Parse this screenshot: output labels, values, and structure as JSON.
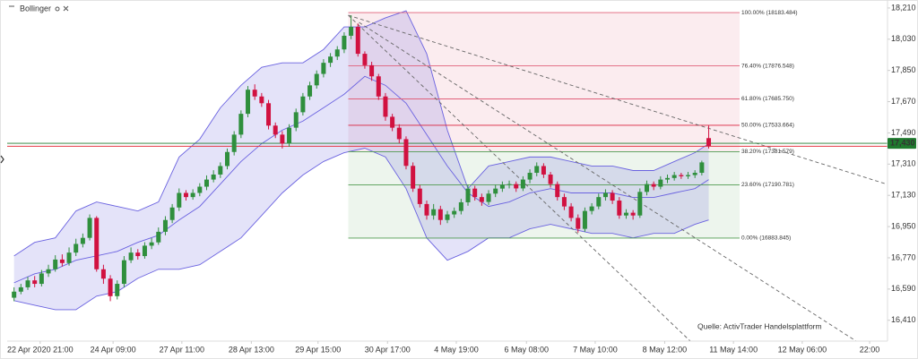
{
  "chart_data": {
    "type": "candlestick",
    "legend": "Bollinger",
    "source": "Quelle: ActivTrader Handelsplattform",
    "up_color": "#2f8f3d",
    "down_color": "#d11140",
    "open": [
      16540,
      16575,
      16600,
      16640,
      16620,
      16680,
      16704,
      16760,
      16740,
      16800,
      16850,
      16885,
      17000,
      16704,
      16650,
      16549,
      16620,
      16756,
      16800,
      16780,
      16840,
      16859,
      16920,
      16988,
      17060,
      17144,
      17120,
      17144,
      17180,
      17221,
      17250,
      17299,
      17380,
      17480,
      17600,
      17739,
      17700,
      17661,
      17532,
      17480,
      17428,
      17520,
      17609,
      17700,
      17764,
      17830,
      17894,
      17930,
      17971,
      18050,
      18101,
      17946,
      17880,
      17816,
      17700,
      17583,
      17520,
      17454,
      17300,
      17169,
      17080,
      17014,
      17050,
      16988,
      17020,
      17040,
      17090,
      17169,
      17120,
      17092,
      17140,
      17169,
      17190,
      17195,
      17170,
      17221,
      17260,
      17299,
      17250,
      17195,
      17120,
      17066,
      17000,
      16937,
      17040,
      17066,
      17120,
      17144,
      17100,
      17014,
      17030,
      17014,
      17150,
      17195,
      17180,
      17221,
      17230,
      17247,
      17240,
      17247,
      17260,
      17460
    ],
    "high": [
      16600,
      16620,
      16660,
      16665,
      16700,
      16730,
      16785,
      16790,
      16830,
      16880,
      16910,
      17020,
      17010,
      16730,
      16670,
      16640,
      16780,
      16830,
      16820,
      16860,
      16885,
      16945,
      17010,
      17080,
      17170,
      17160,
      17165,
      17200,
      17245,
      17275,
      17320,
      17400,
      17500,
      17620,
      17760,
      17770,
      17720,
      17680,
      17550,
      17500,
      17540,
      17630,
      17720,
      17785,
      17850,
      17915,
      17950,
      17990,
      18070,
      18168,
      18120,
      17960,
      17900,
      17830,
      17720,
      17600,
      17540,
      17470,
      17320,
      17190,
      17100,
      17080,
      17070,
      17040,
      17060,
      17110,
      17190,
      17185,
      17140,
      17160,
      17190,
      17210,
      17215,
      17210,
      17240,
      17280,
      17320,
      17315,
      17265,
      17210,
      17140,
      17085,
      17020,
      17060,
      17085,
      17140,
      17165,
      17160,
      17120,
      17050,
      17045,
      17170,
      17215,
      17210,
      17240,
      17250,
      17265,
      17260,
      17265,
      17275,
      17330,
      17532
    ],
    "low": [
      16520,
      16560,
      16585,
      16600,
      16605,
      16660,
      16690,
      16720,
      16725,
      16780,
      16830,
      16870,
      16690,
      16620,
      16520,
      16530,
      16600,
      16740,
      16760,
      16765,
      16820,
      16845,
      16900,
      16970,
      17040,
      17100,
      17105,
      17125,
      17160,
      17205,
      17230,
      17280,
      17360,
      17460,
      17580,
      17680,
      17640,
      17510,
      17460,
      17400,
      17410,
      17500,
      17590,
      17680,
      17745,
      17810,
      17870,
      17910,
      17950,
      18030,
      17930,
      17860,
      17790,
      17680,
      17560,
      17500,
      17430,
      17280,
      17150,
      17060,
      16990,
      16990,
      16960,
      16970,
      17000,
      17020,
      17070,
      17100,
      17070,
      17075,
      17120,
      17150,
      17170,
      17150,
      17155,
      17200,
      17240,
      17230,
      17175,
      17100,
      17045,
      16980,
      16915,
      16920,
      17020,
      17050,
      17100,
      17080,
      16995,
      16995,
      16990,
      17000,
      17130,
      17160,
      17165,
      17200,
      17215,
      17225,
      17225,
      17230,
      17245,
      17400
    ],
    "close": [
      16575,
      16600,
      16640,
      16620,
      16680,
      16704,
      16760,
      16740,
      16800,
      16850,
      16885,
      17000,
      16704,
      16650,
      16549,
      16620,
      16756,
      16800,
      16780,
      16840,
      16859,
      16920,
      16988,
      17060,
      17144,
      17120,
      17144,
      17180,
      17221,
      17250,
      17299,
      17380,
      17480,
      17600,
      17739,
      17700,
      17661,
      17532,
      17480,
      17428,
      17520,
      17609,
      17700,
      17764,
      17830,
      17894,
      17930,
      17971,
      18050,
      18101,
      17946,
      17880,
      17816,
      17700,
      17583,
      17520,
      17454,
      17300,
      17169,
      17080,
      17014,
      17050,
      16988,
      17020,
      17040,
      17090,
      17169,
      17120,
      17092,
      17140,
      17169,
      17190,
      17195,
      17170,
      17221,
      17260,
      17299,
      17250,
      17195,
      17120,
      17066,
      17000,
      16937,
      17040,
      17066,
      17120,
      17144,
      17100,
      17014,
      17030,
      17014,
      17150,
      17195,
      17180,
      17221,
      17230,
      17247,
      17240,
      17247,
      17260,
      17320,
      17415
    ],
    "bands": {
      "color": "#6a62e0",
      "x": [
        0,
        3,
        6,
        9,
        12,
        15,
        18,
        21,
        24,
        27,
        30,
        33,
        36,
        39,
        42,
        45,
        48,
        51,
        54,
        57,
        60,
        63,
        66,
        69,
        72,
        75,
        78,
        81,
        84,
        87,
        90,
        93,
        96,
        99,
        101
      ],
      "upper": [
        16781,
        16859,
        16885,
        17040,
        17092,
        17066,
        17040,
        17092,
        17351,
        17454,
        17635,
        17764,
        17868,
        17894,
        17894,
        17971,
        18101,
        18101,
        18153,
        18194,
        17946,
        17506,
        17169,
        17299,
        17325,
        17351,
        17351,
        17325,
        17299,
        17299,
        17273,
        17273,
        17325,
        17376,
        17428
      ],
      "middle": [
        16626,
        16678,
        16704,
        16756,
        16781,
        16807,
        16859,
        16900,
        16988,
        17066,
        17195,
        17325,
        17428,
        17506,
        17558,
        17635,
        17713,
        17816,
        17764,
        17661,
        17480,
        17299,
        17144,
        17066,
        17092,
        17144,
        17169,
        17144,
        17144,
        17144,
        17118,
        17118,
        17144,
        17169,
        17221
      ],
      "lower": [
        16523,
        16497,
        16471,
        16471,
        16549,
        16575,
        16652,
        16704,
        16704,
        16730,
        16807,
        16885,
        17014,
        17144,
        17247,
        17325,
        17376,
        17402,
        17351,
        17169,
        16885,
        16756,
        16807,
        16885,
        16885,
        16937,
        16963,
        16937,
        16911,
        16911,
        16885,
        16911,
        16911,
        16963,
        16988
      ]
    },
    "fib_levels": [
      {
        "value": 18183.484,
        "label": "100.00% (18183.484)",
        "color": "#e0607a"
      },
      {
        "value": 17876.548,
        "label": "76.40% (17876.548)",
        "color": "#e0607a"
      },
      {
        "value": 17685.75,
        "label": "61.80% (17685.750)",
        "color": "#e0607a"
      },
      {
        "value": 17533.664,
        "label": "50.00% (17533.664)",
        "color": "#d8203c"
      },
      {
        "value": 17381.579,
        "label": "38.20% (17381.579)",
        "color": "#4f9a4f"
      },
      {
        "value": 17190.781,
        "label": "23.60% (17190.781)",
        "color": "#4f9a4f"
      },
      {
        "value": 16883.845,
        "label": "0.00% (16883.845)",
        "color": "#4f9a4f"
      }
    ],
    "price_lines": [
      {
        "value": 17430,
        "label": "17,430",
        "color": "#1f7a2e"
      },
      {
        "value": 17413,
        "color": "#e53945"
      }
    ],
    "xlim": [
      -1,
      127
    ],
    "xticks": [
      {
        "value": 3.8,
        "label": "22 Apr 2020 21:00"
      },
      {
        "value": 14.4,
        "label": "24 Apr 09:00"
      },
      {
        "value": 24.4,
        "label": "27 Apr 11:00"
      },
      {
        "value": 34.5,
        "label": "28 Apr 13:00"
      },
      {
        "value": 44.2,
        "label": "29 Apr 15:00"
      },
      {
        "value": 54.3,
        "label": "30 Apr 17:00"
      },
      {
        "value": 64.3,
        "label": "4 May 19:00"
      },
      {
        "value": 74.5,
        "label": "6 May 08:00"
      },
      {
        "value": 84.5,
        "label": "7 May 10:00"
      },
      {
        "value": 94.6,
        "label": "8 May 12:00"
      },
      {
        "value": 104.6,
        "label": "11 May 14:00"
      },
      {
        "value": 114.6,
        "label": "12 May 06:00"
      },
      {
        "value": 124.4,
        "label": "22:00"
      }
    ],
    "ylim": [
      16290,
      18256
    ],
    "yticks": [
      {
        "value": 18210,
        "label": "18,210"
      },
      {
        "value": 18030,
        "label": "18,030"
      },
      {
        "value": 17850,
        "label": "17,850"
      },
      {
        "value": 17670,
        "label": "17,670"
      },
      {
        "value": 17490,
        "label": "17,490"
      },
      {
        "value": 17310,
        "label": "17,310"
      },
      {
        "value": 17130,
        "label": "17,130"
      },
      {
        "value": 16950,
        "label": "16,950"
      },
      {
        "value": 16770,
        "label": "16,770"
      },
      {
        "value": 16590,
        "label": "16,590"
      },
      {
        "value": 16410,
        "label": "16,410"
      }
    ]
  }
}
